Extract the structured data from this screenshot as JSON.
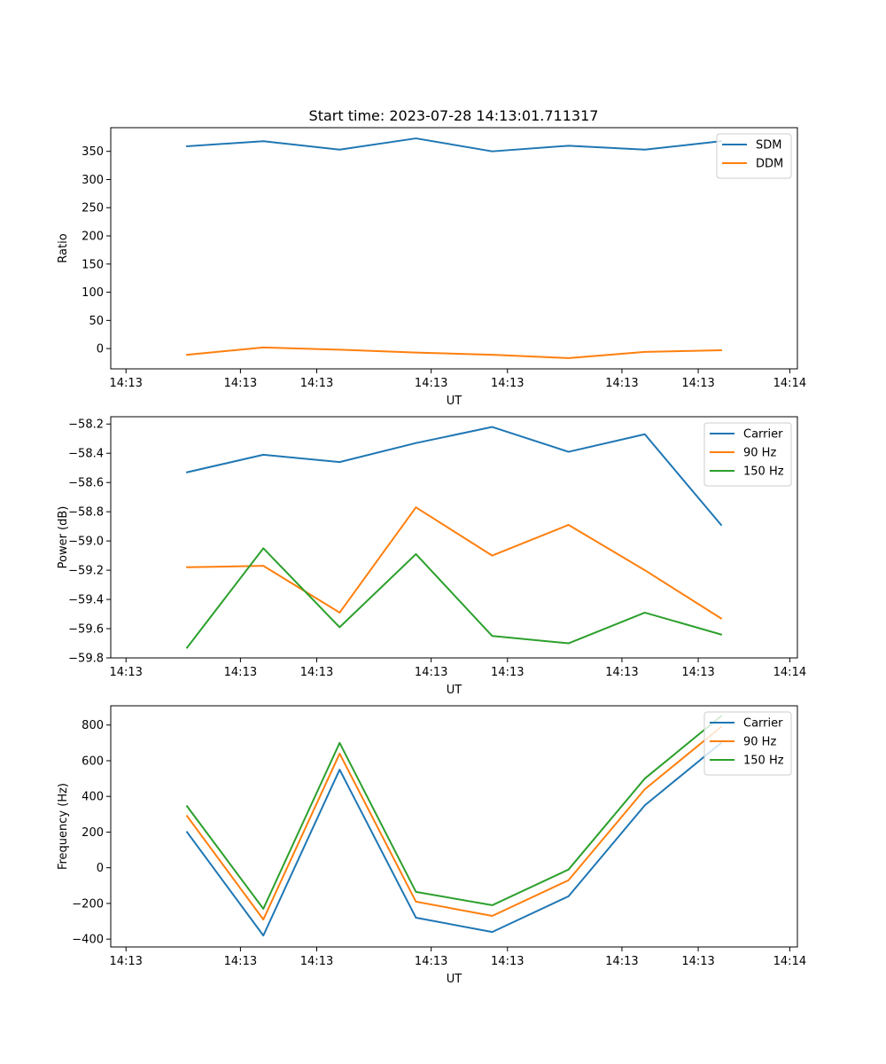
{
  "figure_title": "Start time: 2023-07-28 14:13:01.711317",
  "chart_data": [
    {
      "type": "line",
      "title": "Start time: 2023-07-28 14:13:01.711317",
      "xlabel": "UT",
      "ylabel": "Ratio",
      "xlim": [
        -0.5,
        8.5
      ],
      "ylim": [
        -36,
        392
      ],
      "x_tick_values": [
        -0.3,
        1.2,
        2.2,
        3.7,
        4.7,
        6.2,
        7.2,
        8.4
      ],
      "x_tick_labels": [
        "14:13",
        "14:13",
        "14:13",
        "14:13",
        "14:13",
        "14:13",
        "14:13",
        "14:14"
      ],
      "y_ticks": [
        0,
        50,
        100,
        150,
        200,
        250,
        300,
        350
      ],
      "y_tick_labels": [
        "0",
        "50",
        "100",
        "150",
        "200",
        "250",
        "300",
        "350"
      ],
      "legend_position": "top-right",
      "x": [
        0.5,
        1.5,
        2.5,
        3.5,
        4.5,
        5.5,
        6.5,
        7.5
      ],
      "series": [
        {
          "name": "SDM",
          "color": "#1f77b4",
          "values": [
            359,
            368,
            353,
            373,
            350,
            360,
            353,
            368
          ]
        },
        {
          "name": "DDM",
          "color": "#ff7f0e",
          "values": [
            -11,
            2,
            -2,
            -7,
            -11,
            -17,
            -6,
            -3
          ]
        }
      ]
    },
    {
      "type": "line",
      "title": "",
      "xlabel": "UT",
      "ylabel": "Power (dB)",
      "xlim": [
        -0.5,
        8.5
      ],
      "ylim": [
        -59.8,
        -58.15
      ],
      "x_tick_values": [
        -0.3,
        1.2,
        2.2,
        3.7,
        4.7,
        6.2,
        7.2,
        8.4
      ],
      "x_tick_labels": [
        "14:13",
        "14:13",
        "14:13",
        "14:13",
        "14:13",
        "14:13",
        "14:13",
        "14:14"
      ],
      "y_ticks": [
        -59.8,
        -59.6,
        -59.4,
        -59.2,
        -59.0,
        -58.8,
        -58.6,
        -58.4,
        -58.2
      ],
      "y_tick_labels": [
        "−59.8",
        "−59.6",
        "−59.4",
        "−59.2",
        "−59.0",
        "−58.8",
        "−58.6",
        "−58.4",
        "−58.2"
      ],
      "legend_position": "top-right",
      "x": [
        0.5,
        1.5,
        2.5,
        3.5,
        4.5,
        5.5,
        6.5,
        7.5
      ],
      "series": [
        {
          "name": "Carrier",
          "color": "#1f77b4",
          "values": [
            -58.53,
            -58.41,
            -58.46,
            -58.33,
            -58.22,
            -58.39,
            -58.27,
            -58.89
          ]
        },
        {
          "name": "90 Hz",
          "color": "#ff7f0e",
          "values": [
            -59.18,
            -59.17,
            -59.49,
            -58.77,
            -59.1,
            -58.89,
            -59.2,
            -59.53
          ]
        },
        {
          "name": "150 Hz",
          "color": "#2ca02c",
          "values": [
            -59.73,
            -59.05,
            -59.59,
            -59.09,
            -59.65,
            -59.7,
            -59.49,
            -59.64
          ]
        }
      ]
    },
    {
      "type": "line",
      "title": "",
      "xlabel": "UT",
      "ylabel": "Frequency (Hz)",
      "xlim": [
        -0.5,
        8.5
      ],
      "ylim": [
        -444,
        908
      ],
      "x_tick_values": [
        -0.3,
        1.2,
        2.2,
        3.7,
        4.7,
        6.2,
        7.2,
        8.4
      ],
      "x_tick_labels": [
        "14:13",
        "14:13",
        "14:13",
        "14:13",
        "14:13",
        "14:13",
        "14:13",
        "14:14"
      ],
      "y_ticks": [
        -400,
        -200,
        0,
        200,
        400,
        600,
        800
      ],
      "y_tick_labels": [
        "−400",
        "−200",
        "0",
        "200",
        "400",
        "600",
        "800"
      ],
      "legend_position": "top-right",
      "x": [
        0.5,
        1.5,
        2.5,
        3.5,
        4.5,
        5.5,
        6.5,
        7.5
      ],
      "series": [
        {
          "name": "Carrier",
          "color": "#1f77b4",
          "values": [
            200,
            -380,
            550,
            -280,
            -360,
            -160,
            350,
            700
          ]
        },
        {
          "name": "90 Hz",
          "color": "#ff7f0e",
          "values": [
            290,
            -290,
            640,
            -190,
            -270,
            -70,
            440,
            790
          ]
        },
        {
          "name": "150 Hz",
          "color": "#2ca02c",
          "values": [
            345,
            -230,
            700,
            -135,
            -210,
            -10,
            500,
            850
          ]
        }
      ]
    }
  ]
}
